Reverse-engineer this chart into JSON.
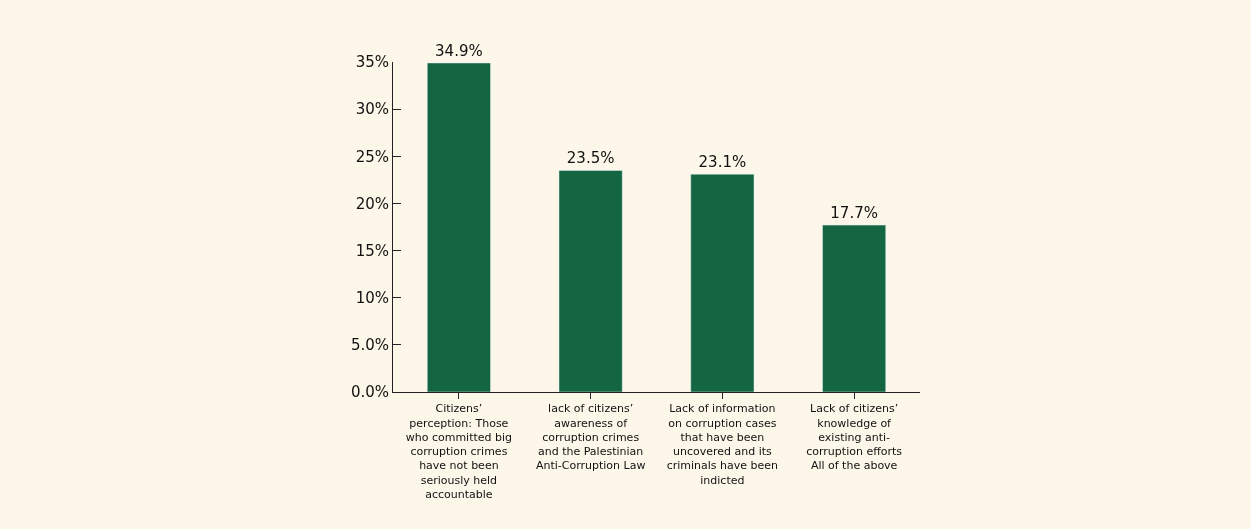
{
  "chart_data": {
    "type": "bar",
    "categories": [
      "Citizens’ perception: Those who committed big corruption crimes have not been seriously held accountable",
      "lack of citizens’ awareness of corruption crimes and the Palestinian Anti-Corruption Law",
      "Lack of information on corruption cases that have been uncovered and its criminals have been indicted",
      "Lack of citizens’ knowledge of existing anti-corruption efforts All of the above"
    ],
    "values": [
      34.9,
      23.5,
      23.1,
      17.7
    ],
    "value_labels": [
      "34.9%",
      "23.5%",
      "23.1%",
      "17.7%"
    ],
    "color": "#146541",
    "ylim": [
      0,
      35
    ],
    "yticks": [
      {
        "value": 0,
        "label": "0.0%"
      },
      {
        "value": 5,
        "label": "5.0%"
      },
      {
        "value": 10,
        "label": "10%"
      },
      {
        "value": 15,
        "label": "15%"
      },
      {
        "value": 20,
        "label": "20%"
      },
      {
        "value": 25,
        "label": "25%"
      },
      {
        "value": 30,
        "label": "30%"
      },
      {
        "value": 35,
        "label": "35%"
      }
    ],
    "grid": false,
    "legend": false
  }
}
